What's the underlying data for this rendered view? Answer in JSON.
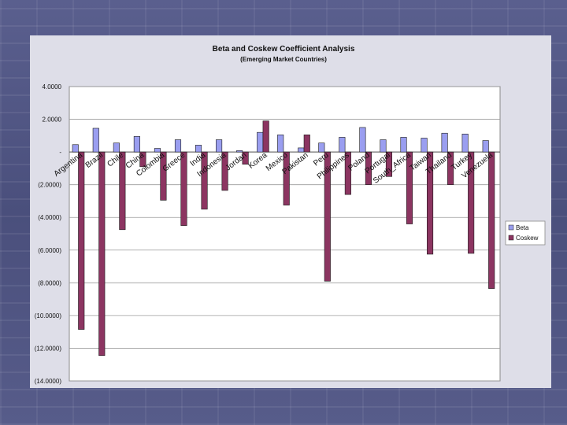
{
  "chart_data": {
    "type": "bar",
    "title": "Beta and Coskew Coefficient Analysis",
    "subtitle": "(Emerging Market Countries)",
    "xlabel": "",
    "ylabel": "",
    "ylim": [
      -14,
      4
    ],
    "yticks": [
      4,
      2,
      0,
      -2,
      -4,
      -6,
      -8,
      -10,
      -12,
      -14
    ],
    "ytick_labels": [
      "4.0000",
      "2.0000",
      "-",
      "(2.0000)",
      "(4.0000)",
      "(6.0000)",
      "(8.0000)",
      "(10.0000)",
      "(12.0000)",
      "(14.0000)"
    ],
    "grid": true,
    "legend_position": "right",
    "categories": [
      "Argentina",
      "Brazil",
      "Chile",
      "China",
      "Colombia",
      "Greece",
      "India",
      "Indonesia",
      "Jordan",
      "Korea",
      "Mexico",
      "Pakistan",
      "Peru",
      "Philippines",
      "Poland",
      "Portugal",
      "South_Africa",
      "Taiwan",
      "Thailand",
      "Turkey",
      "Venezuela"
    ],
    "series": [
      {
        "name": "Beta",
        "color": "#9a9ef0",
        "values": [
          0.45,
          1.45,
          0.55,
          0.95,
          0.22,
          0.75,
          0.42,
          0.75,
          0.08,
          1.2,
          1.05,
          0.25,
          0.55,
          0.9,
          1.5,
          0.75,
          0.9,
          0.85,
          1.15,
          1.1,
          0.7
        ]
      },
      {
        "name": "Coskew",
        "color": "#8c3561",
        "values": [
          -10.85,
          -12.45,
          -4.75,
          -0.9,
          -2.95,
          -4.5,
          -3.5,
          -2.35,
          -0.75,
          1.9,
          -3.25,
          1.05,
          -7.9,
          -2.6,
          -2.0,
          -1.5,
          -4.4,
          -6.25,
          -2.0,
          -6.2,
          -8.35
        ]
      }
    ]
  },
  "colors": {
    "plot_background": "#ffffff",
    "gridline": "#9b9b9b",
    "bar_outline": "#1a1a1a",
    "text": "#111111"
  }
}
